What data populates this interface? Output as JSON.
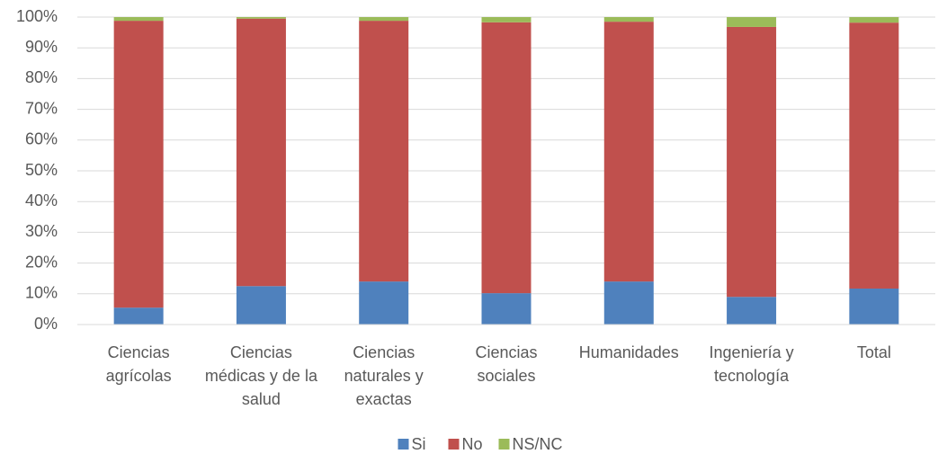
{
  "chart_data": {
    "type": "stacked_bar",
    "categories": [
      "Ciencias agrícolas",
      "Ciencias médicas y de la salud",
      "Ciencias naturales y exactas",
      "Ciencias sociales",
      "Humanidades",
      "Ingeniería y tecnología",
      "Total"
    ],
    "series": [
      {
        "name": "Si",
        "color": "#4f81bd",
        "values": [
          5.5,
          12.5,
          14,
          10.2,
          14,
          9,
          11.7
        ]
      },
      {
        "name": "No",
        "color": "#c0504d",
        "values": [
          93.3,
          87,
          84.8,
          88.1,
          84.5,
          87.8,
          86.5
        ]
      },
      {
        "name": "NS/NC",
        "color": "#9bbb59",
        "values": [
          1.2,
          0.5,
          1.2,
          1.7,
          1.5,
          3.2,
          1.8
        ]
      }
    ],
    "ylim": [
      0,
      100
    ],
    "yticks": [
      {
        "value": 0,
        "label": "0%"
      },
      {
        "value": 10,
        "label": "10%"
      },
      {
        "value": 20,
        "label": "20%"
      },
      {
        "value": 30,
        "label": "30%"
      },
      {
        "value": 40,
        "label": "40%"
      },
      {
        "value": 50,
        "label": "50%"
      },
      {
        "value": 60,
        "label": "60%"
      },
      {
        "value": 70,
        "label": "70%"
      },
      {
        "value": 80,
        "label": "80%"
      },
      {
        "value": 90,
        "label": "90%"
      },
      {
        "value": 100,
        "label": "100%"
      }
    ],
    "grid": true,
    "legend": "bottom"
  }
}
